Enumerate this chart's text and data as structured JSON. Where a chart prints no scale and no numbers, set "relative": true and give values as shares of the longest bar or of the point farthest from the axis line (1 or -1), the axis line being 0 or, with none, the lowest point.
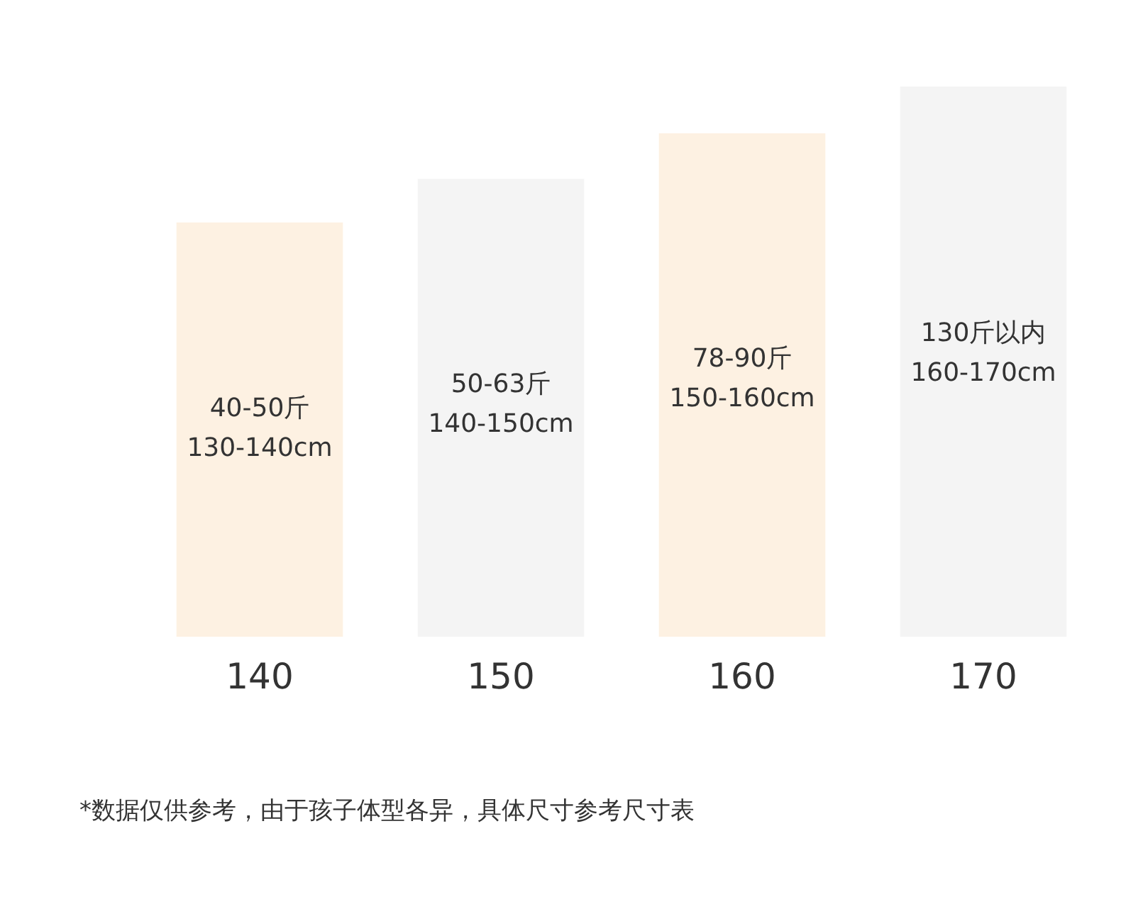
{
  "chart_data": {
    "type": "bar",
    "relative": true,
    "categories": [
      "140",
      "150",
      "160",
      "170"
    ],
    "values": [
      0.753,
      0.832,
      0.915,
      1
    ],
    "colors": [
      "#fdf1e2",
      "#f4f4f4",
      "#fdf1e2",
      "#f4f4f4"
    ],
    "annotations": [
      "40-50斤\n130-140cm",
      "50-63斤\n140-150cm",
      "78-90斤\n150-160cm",
      "130斤以内\n160-170cm",
      "*数据仅供参考，由于孩子体型各异，具体尺寸参考尺寸表"
    ]
  }
}
